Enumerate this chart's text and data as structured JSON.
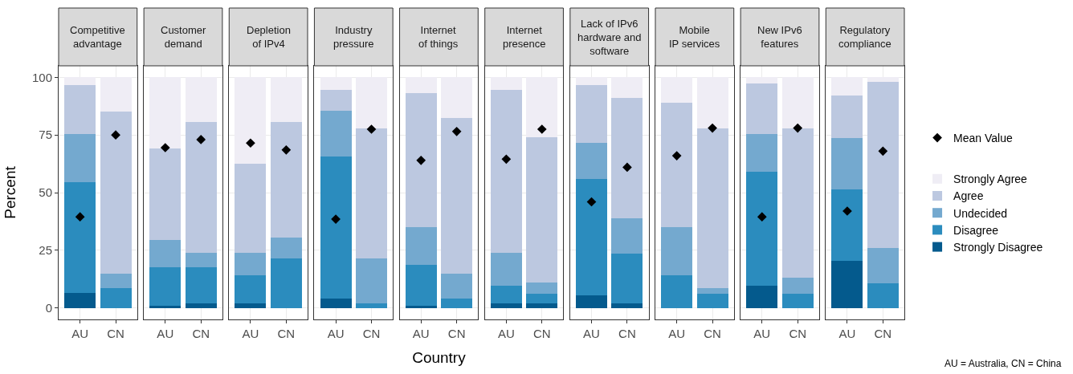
{
  "chart_data": [
    {
      "type": "bar",
      "title": "Competitive\nadvantage",
      "ylabel": "Percent",
      "categories": [
        "AU",
        "CN"
      ],
      "stacked": true,
      "ylim": [
        -5,
        105
      ],
      "yticks": [
        0,
        25,
        50,
        75,
        100
      ],
      "grid": true,
      "legend": "right",
      "series": [
        {
          "name": "Strongly Disagree",
          "color": "#045a8d",
          "values": [
            6.5,
            0
          ]
        },
        {
          "name": "Disagree",
          "color": "#2b8cbe",
          "values": [
            48,
            8.5
          ]
        },
        {
          "name": "Undecided",
          "color": "#74a9cf",
          "values": [
            21,
            6.5
          ]
        },
        {
          "name": "Agree",
          "color": "#bcc8e0",
          "values": [
            21,
            70
          ]
        },
        {
          "name": "Strongly Agree",
          "color": "#efedf5",
          "values": [
            3.5,
            15
          ]
        },
        {
          "name": "Mean Value",
          "type": "scatter",
          "marker": "diamond",
          "color": "#000000",
          "values": [
            39.5,
            75
          ]
        }
      ]
    },
    {
      "type": "bar",
      "title": "Customer\ndemand",
      "categories": [
        "AU",
        "CN"
      ],
      "stacked": true,
      "ylim": [
        -5,
        105
      ],
      "yticks": [
        0,
        25,
        50,
        75,
        100
      ],
      "grid": true,
      "tick_labels": "x",
      "series": [
        {
          "color": "#045a8d",
          "values": [
            1,
            2
          ]
        },
        {
          "color": "#2b8cbe",
          "values": [
            16.5,
            15.5
          ]
        },
        {
          "color": "#74a9cf",
          "values": [
            12,
            6.5
          ]
        },
        {
          "color": "#bcc8e0",
          "values": [
            39.5,
            56.5
          ]
        },
        {
          "color": "#efedf5",
          "values": [
            31,
            19.5
          ]
        },
        {
          "type": "scatter",
          "marker": "diamond",
          "color": "#000000",
          "values": [
            69.5,
            73
          ]
        }
      ]
    },
    {
      "type": "bar",
      "title": "Depletion\nof IPv4",
      "categories": [
        "AU",
        "CN"
      ],
      "stacked": true,
      "ylim": [
        -5,
        105
      ],
      "yticks": [
        0,
        25,
        50,
        75,
        100
      ],
      "grid": true,
      "tick_labels": "x",
      "series": [
        {
          "color": "#045a8d",
          "values": [
            2,
            0
          ]
        },
        {
          "color": "#2b8cbe",
          "values": [
            12,
            21.5
          ]
        },
        {
          "color": "#74a9cf",
          "values": [
            10,
            9
          ]
        },
        {
          "color": "#bcc8e0",
          "values": [
            38.5,
            50
          ]
        },
        {
          "color": "#efedf5",
          "values": [
            37.5,
            19.5
          ]
        },
        {
          "type": "scatter",
          "marker": "diamond",
          "color": "#000000",
          "values": [
            71.5,
            68.5
          ]
        }
      ]
    },
    {
      "type": "bar",
      "title": "Industry\npressure",
      "categories": [
        "AU",
        "CN"
      ],
      "stacked": true,
      "ylim": [
        -5,
        105
      ],
      "yticks": [
        0,
        25,
        50,
        75,
        100
      ],
      "grid": true,
      "tick_labels": "x",
      "series": [
        {
          "color": "#045a8d",
          "values": [
            4,
            0
          ]
        },
        {
          "color": "#2b8cbe",
          "values": [
            61.5,
            2
          ]
        },
        {
          "color": "#74a9cf",
          "values": [
            20,
            19.5
          ]
        },
        {
          "color": "#bcc8e0",
          "values": [
            9,
            56.5
          ]
        },
        {
          "color": "#efedf5",
          "values": [
            5.5,
            22
          ]
        },
        {
          "type": "scatter",
          "marker": "diamond",
          "color": "#000000",
          "values": [
            38.5,
            77.5
          ]
        }
      ]
    },
    {
      "type": "bar",
      "title": "Internet\nof things",
      "xlabel": "Country",
      "categories": [
        "AU",
        "CN"
      ],
      "stacked": true,
      "ylim": [
        -5,
        105
      ],
      "yticks": [
        0,
        25,
        50,
        75,
        100
      ],
      "grid": true,
      "tick_labels": "x",
      "series": [
        {
          "color": "#045a8d",
          "values": [
            1,
            0
          ]
        },
        {
          "color": "#2b8cbe",
          "values": [
            17.5,
            4
          ]
        },
        {
          "color": "#74a9cf",
          "values": [
            16.5,
            11
          ]
        },
        {
          "color": "#bcc8e0",
          "values": [
            58,
            67.5
          ]
        },
        {
          "color": "#efedf5",
          "values": [
            7,
            17.5
          ]
        },
        {
          "type": "scatter",
          "marker": "diamond",
          "color": "#000000",
          "values": [
            64,
            76.5
          ]
        }
      ]
    },
    {
      "type": "bar",
      "title": "Internet\npresence",
      "categories": [
        "AU",
        "CN"
      ],
      "stacked": true,
      "ylim": [
        -5,
        105
      ],
      "yticks": [
        0,
        25,
        50,
        75,
        100
      ],
      "grid": true,
      "tick_labels": "x",
      "series": [
        {
          "color": "#045a8d",
          "values": [
            2,
            2
          ]
        },
        {
          "color": "#2b8cbe",
          "values": [
            7.5,
            4
          ]
        },
        {
          "color": "#74a9cf",
          "values": [
            14.5,
            5
          ]
        },
        {
          "color": "#bcc8e0",
          "values": [
            70.5,
            63
          ]
        },
        {
          "color": "#efedf5",
          "values": [
            5.5,
            26
          ]
        },
        {
          "type": "scatter",
          "marker": "diamond",
          "color": "#000000",
          "values": [
            64.5,
            77.5
          ]
        }
      ]
    },
    {
      "type": "bar",
      "title": "Lack of IPv6\nhardware and\nsoftware",
      "categories": [
        "AU",
        "CN"
      ],
      "stacked": true,
      "ylim": [
        -5,
        105
      ],
      "yticks": [
        0,
        25,
        50,
        75,
        100
      ],
      "grid": true,
      "tick_labels": "x",
      "series": [
        {
          "color": "#045a8d",
          "values": [
            5.5,
            2
          ]
        },
        {
          "color": "#2b8cbe",
          "values": [
            50.5,
            21.5
          ]
        },
        {
          "color": "#74a9cf",
          "values": [
            15.5,
            15.5
          ]
        },
        {
          "color": "#bcc8e0",
          "values": [
            25,
            52
          ]
        },
        {
          "color": "#efedf5",
          "values": [
            3.5,
            9
          ]
        },
        {
          "type": "scatter",
          "marker": "diamond",
          "color": "#000000",
          "values": [
            46,
            61
          ]
        }
      ]
    },
    {
      "type": "bar",
      "title": "Mobile\nIP services",
      "categories": [
        "AU",
        "CN"
      ],
      "stacked": true,
      "ylim": [
        -5,
        105
      ],
      "yticks": [
        0,
        25,
        50,
        75,
        100
      ],
      "grid": true,
      "tick_labels": "x",
      "series": [
        {
          "color": "#045a8d",
          "values": [
            0,
            0
          ]
        },
        {
          "color": "#2b8cbe",
          "values": [
            14,
            6
          ]
        },
        {
          "color": "#74a9cf",
          "values": [
            21,
            2.5
          ]
        },
        {
          "color": "#bcc8e0",
          "values": [
            54,
            69.5
          ]
        },
        {
          "color": "#efedf5",
          "values": [
            11,
            22
          ]
        },
        {
          "type": "scatter",
          "marker": "diamond",
          "color": "#000000",
          "values": [
            66,
            78
          ]
        }
      ]
    },
    {
      "type": "bar",
      "title": "New IPv6\nfeatures",
      "categories": [
        "AU",
        "CN"
      ],
      "stacked": true,
      "ylim": [
        -5,
        105
      ],
      "yticks": [
        0,
        25,
        50,
        75,
        100
      ],
      "grid": true,
      "tick_labels": "x",
      "series": [
        {
          "color": "#045a8d",
          "values": [
            9.5,
            0
          ]
        },
        {
          "color": "#2b8cbe",
          "values": [
            49.5,
            6
          ]
        },
        {
          "color": "#74a9cf",
          "values": [
            16.5,
            7
          ]
        },
        {
          "color": "#bcc8e0",
          "values": [
            22,
            65
          ]
        },
        {
          "color": "#efedf5",
          "values": [
            2.5,
            22
          ]
        },
        {
          "type": "scatter",
          "marker": "diamond",
          "color": "#000000",
          "values": [
            39.5,
            78
          ]
        }
      ]
    },
    {
      "type": "bar",
      "title": "Regulatory\ncompliance",
      "categories": [
        "AU",
        "CN"
      ],
      "stacked": true,
      "ylim": [
        -5,
        105
      ],
      "yticks": [
        0,
        25,
        50,
        75,
        100
      ],
      "grid": true,
      "tick_labels": "x",
      "annotations": [
        "AU = Australia, CN = China"
      ],
      "series": [
        {
          "color": "#045a8d",
          "values": [
            20.5,
            0
          ]
        },
        {
          "color": "#2b8cbe",
          "values": [
            31,
            10.5
          ]
        },
        {
          "color": "#74a9cf",
          "values": [
            22,
            15.5
          ]
        },
        {
          "color": "#bcc8e0",
          "values": [
            18.5,
            72
          ]
        },
        {
          "color": "#efedf5",
          "values": [
            8,
            2
          ]
        },
        {
          "type": "scatter",
          "marker": "diamond",
          "color": "#000000",
          "values": [
            42,
            68
          ]
        }
      ]
    }
  ]
}
